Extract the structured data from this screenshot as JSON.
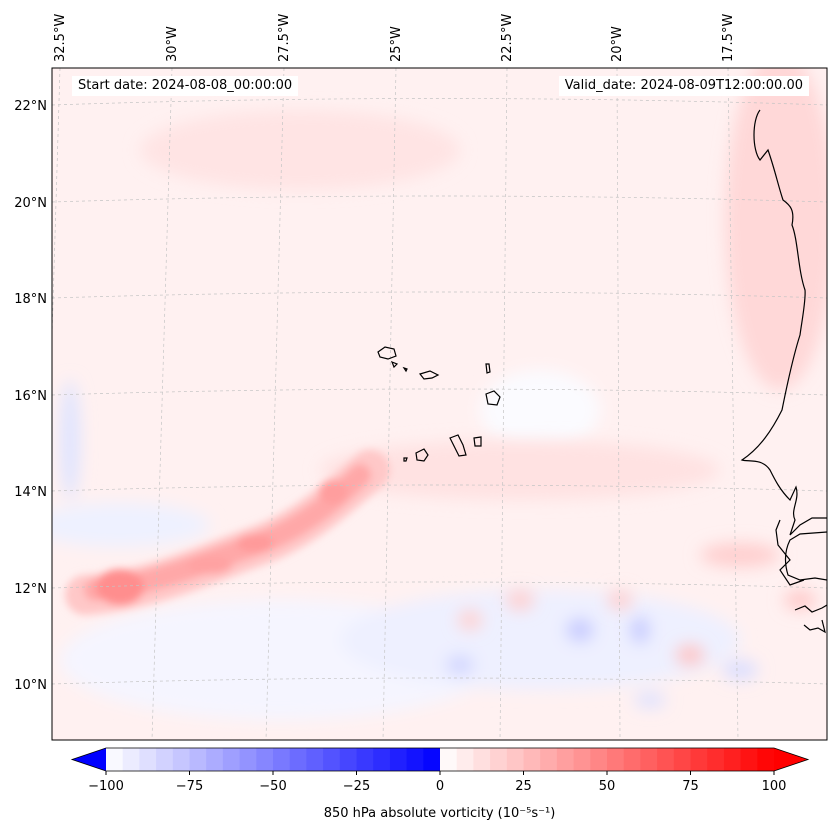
{
  "header": {
    "start_date": "Start date: 2024-08-08_00:00:00",
    "valid_date": "Valid_date: 2024-08-09T12:00:00.00"
  },
  "axes": {
    "lon_labels": [
      "32.5°W",
      "30°W",
      "27.5°W",
      "25°W",
      "22.5°W",
      "20°W",
      "17.5°W"
    ],
    "lat_labels": [
      "22°N",
      "20°N",
      "18°N",
      "16°N",
      "14°N",
      "12°N",
      "10°N"
    ]
  },
  "colorbar": {
    "label": "850 hPa absolute vorticity (10⁻⁵s⁻¹)",
    "range": [
      -100,
      100
    ],
    "ticks": [
      "−100",
      "−75",
      "−50",
      "−25",
      "0",
      "25",
      "50",
      "75",
      "100"
    ],
    "tick_values": [
      -100,
      -75,
      -50,
      -25,
      0,
      25,
      50,
      75,
      100
    ],
    "neg_color": "#0000ff",
    "pos_color": "#ff0000"
  },
  "colors": {
    "background_tint": "#fff1f1",
    "coastline": "#000000"
  }
}
